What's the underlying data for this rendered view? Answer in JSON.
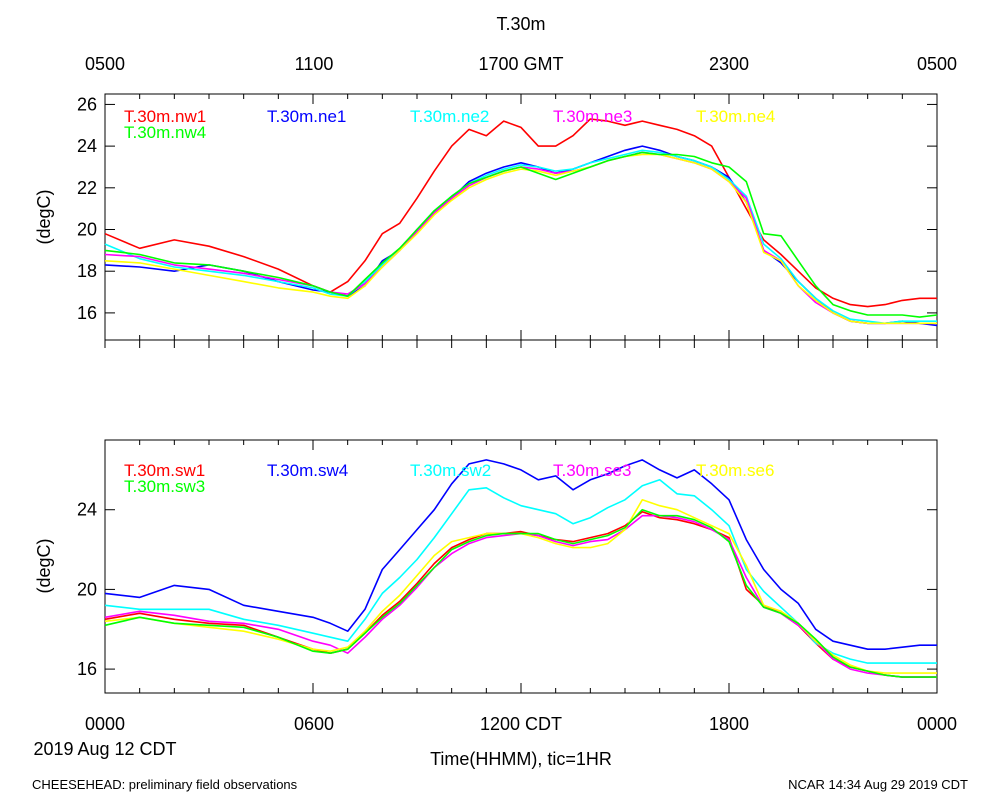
{
  "title": "T.30m",
  "footer_left": "CHEESEHEAD: preliminary field observations",
  "footer_right": "NCAR 14:34 Aug 29 2019 CDT",
  "date_label": "2019 Aug 12 CDT",
  "xlabel": "Time(HHMM), tic=1HR",
  "top_axis_ticks": [
    "0500",
    "1100",
    "1700 GMT",
    "2300",
    "0500"
  ],
  "bottom_axis_ticks": [
    "0000",
    "0600",
    "1200 CDT",
    "1800",
    "0000"
  ],
  "colors": {
    "red": "#ff0000",
    "blue": "#0000ff",
    "cyan": "#00ffff",
    "magenta": "#ff00ff",
    "yellow": "#ffff00",
    "green": "#00ff00"
  },
  "chart_data": [
    {
      "type": "line",
      "panel": "top",
      "ylabel": "(degC)",
      "xlim": [
        0,
        24
      ],
      "ylim": [
        14.7,
        26.5
      ],
      "yticks": [
        16,
        18,
        20,
        22,
        24,
        26
      ],
      "x": [
        0,
        1,
        2,
        3,
        4,
        5,
        6,
        6.5,
        7,
        7.5,
        8,
        8.5,
        9,
        9.5,
        10,
        10.5,
        11,
        11.5,
        12,
        12.5,
        13,
        13.5,
        14,
        14.5,
        15,
        15.5,
        16,
        16.5,
        17,
        17.5,
        18,
        18.5,
        19,
        19.5,
        20,
        20.5,
        21,
        21.5,
        22,
        22.5,
        23,
        23.5,
        24
      ],
      "series": [
        {
          "name": "T.30m.nw1",
          "color": "red",
          "values": [
            19.8,
            19.1,
            19.5,
            19.2,
            18.7,
            18.1,
            17.3,
            17.0,
            17.5,
            18.5,
            19.8,
            20.3,
            21.5,
            22.8,
            24.0,
            24.8,
            24.5,
            25.2,
            24.9,
            24.0,
            24.0,
            24.5,
            25.3,
            25.2,
            25.0,
            25.2,
            25.0,
            24.8,
            24.5,
            24.0,
            22.5,
            21.0,
            19.5,
            18.8,
            18.0,
            17.2,
            16.7,
            16.4,
            16.3,
            16.4,
            16.6,
            16.7,
            16.7
          ]
        },
        {
          "name": "T.30m.ne1",
          "color": "blue",
          "values": [
            18.3,
            18.2,
            18.0,
            18.3,
            18.0,
            17.5,
            17.1,
            17.0,
            16.8,
            17.3,
            18.5,
            19.0,
            20.0,
            20.8,
            21.5,
            22.3,
            22.7,
            23.0,
            23.2,
            23.0,
            22.7,
            22.9,
            23.2,
            23.5,
            23.8,
            24.0,
            23.8,
            23.5,
            23.3,
            23.0,
            22.5,
            21.3,
            19.0,
            18.4,
            17.5,
            16.7,
            16.0,
            15.6,
            15.5,
            15.5,
            15.6,
            15.5,
            15.4
          ]
        },
        {
          "name": "T.30m.ne2",
          "color": "cyan",
          "values": [
            19.3,
            18.6,
            18.2,
            18.0,
            17.8,
            17.5,
            17.2,
            16.9,
            16.8,
            17.5,
            18.3,
            19.0,
            20.0,
            20.9,
            21.6,
            22.2,
            22.6,
            22.9,
            23.1,
            23.0,
            22.8,
            22.9,
            23.2,
            23.4,
            23.6,
            23.8,
            23.7,
            23.5,
            23.3,
            23.0,
            22.4,
            21.6,
            19.3,
            18.6,
            17.5,
            16.7,
            16.1,
            15.7,
            15.6,
            15.5,
            15.6,
            15.6,
            15.6
          ]
        },
        {
          "name": "T.30m.ne3",
          "color": "magenta",
          "values": [
            18.8,
            18.7,
            18.3,
            18.1,
            17.9,
            17.6,
            17.3,
            17.0,
            16.9,
            17.4,
            18.2,
            19.0,
            19.9,
            20.8,
            21.5,
            22.1,
            22.5,
            22.8,
            23.0,
            22.9,
            22.7,
            22.8,
            23.0,
            23.3,
            23.5,
            23.7,
            23.6,
            23.4,
            23.2,
            22.9,
            22.3,
            21.5,
            19.0,
            18.5,
            17.3,
            16.5,
            16.0,
            15.6,
            15.5,
            15.5,
            15.5,
            15.5,
            15.5
          ]
        },
        {
          "name": "T.30m.ne4",
          "color": "yellow",
          "values": [
            18.5,
            18.4,
            18.1,
            17.8,
            17.5,
            17.2,
            17.0,
            16.8,
            16.7,
            17.3,
            18.2,
            19.0,
            19.8,
            20.7,
            21.4,
            22.0,
            22.4,
            22.7,
            22.9,
            22.8,
            22.6,
            22.8,
            23.0,
            23.3,
            23.5,
            23.6,
            23.6,
            23.4,
            23.2,
            22.9,
            22.3,
            21.3,
            18.9,
            18.5,
            17.3,
            16.6,
            16.0,
            15.6,
            15.5,
            15.5,
            15.5,
            15.5,
            15.5
          ]
        },
        {
          "name": "T.30m.nw4",
          "color": "green",
          "values": [
            19.0,
            18.8,
            18.4,
            18.3,
            18.0,
            17.7,
            17.3,
            17.0,
            16.8,
            17.6,
            18.4,
            19.1,
            20.0,
            20.9,
            21.6,
            22.2,
            22.5,
            22.8,
            23.0,
            22.7,
            22.4,
            22.7,
            23.0,
            23.3,
            23.5,
            23.7,
            23.6,
            23.6,
            23.5,
            23.2,
            23.0,
            22.3,
            19.8,
            19.7,
            18.5,
            17.3,
            16.4,
            16.1,
            15.9,
            15.9,
            15.9,
            15.8,
            15.9
          ]
        }
      ]
    },
    {
      "type": "line",
      "panel": "bottom",
      "ylabel": "(degC)",
      "xlim": [
        0,
        24
      ],
      "ylim": [
        14.8,
        27.5
      ],
      "yticks": [
        16,
        20,
        24
      ],
      "x": [
        0,
        1,
        2,
        3,
        4,
        5,
        6,
        6.5,
        7,
        7.5,
        8,
        8.5,
        9,
        9.5,
        10,
        10.5,
        11,
        11.5,
        12,
        12.5,
        13,
        13.5,
        14,
        14.5,
        15,
        15.5,
        16,
        16.5,
        17,
        17.5,
        18,
        18.5,
        19,
        19.5,
        20,
        20.5,
        21,
        21.5,
        22,
        22.5,
        23,
        23.5,
        24
      ],
      "series": [
        {
          "name": "T.30m.sw1",
          "color": "red",
          "values": [
            18.5,
            18.8,
            18.5,
            18.3,
            18.2,
            17.6,
            17.0,
            16.8,
            17.0,
            17.8,
            18.7,
            19.4,
            20.3,
            21.3,
            22.1,
            22.5,
            22.8,
            22.8,
            22.9,
            22.7,
            22.5,
            22.4,
            22.6,
            22.8,
            23.2,
            23.9,
            23.6,
            23.5,
            23.3,
            23.0,
            22.6,
            20.0,
            19.2,
            18.8,
            18.2,
            17.3,
            16.5,
            16.1,
            15.9,
            15.7,
            15.6,
            15.6,
            15.6
          ]
        },
        {
          "name": "T.30m.sw4",
          "color": "blue",
          "values": [
            19.8,
            19.6,
            20.2,
            20.0,
            19.2,
            18.9,
            18.6,
            18.3,
            17.9,
            19.0,
            21.0,
            22.0,
            23.0,
            24.0,
            25.3,
            26.3,
            26.5,
            26.3,
            26.0,
            25.5,
            25.7,
            25.0,
            25.5,
            25.8,
            26.2,
            26.5,
            26.0,
            25.6,
            26.0,
            25.3,
            24.5,
            22.5,
            21.0,
            20.0,
            19.3,
            18.0,
            17.4,
            17.2,
            17.0,
            17.0,
            17.1,
            17.2,
            17.2
          ]
        },
        {
          "name": "T.30m.sw2",
          "color": "cyan",
          "values": [
            19.2,
            19.0,
            19.0,
            19.0,
            18.5,
            18.2,
            17.8,
            17.6,
            17.4,
            18.5,
            19.8,
            20.6,
            21.5,
            22.6,
            23.8,
            25.0,
            25.1,
            24.6,
            24.2,
            24.0,
            23.8,
            23.3,
            23.6,
            24.1,
            24.5,
            25.2,
            25.5,
            24.8,
            24.7,
            24.0,
            23.2,
            21.0,
            19.9,
            19.1,
            18.3,
            17.3,
            16.8,
            16.5,
            16.3,
            16.3,
            16.3,
            16.3,
            16.3
          ]
        },
        {
          "name": "T.30m.se3",
          "color": "magenta",
          "values": [
            18.6,
            18.9,
            18.7,
            18.4,
            18.3,
            18.0,
            17.4,
            17.2,
            16.8,
            17.6,
            18.5,
            19.2,
            20.1,
            21.1,
            21.8,
            22.3,
            22.6,
            22.7,
            22.8,
            22.7,
            22.4,
            22.2,
            22.4,
            22.5,
            23.0,
            23.7,
            23.7,
            23.6,
            23.4,
            23.0,
            22.5,
            20.6,
            19.1,
            18.8,
            18.2,
            17.4,
            16.5,
            16.0,
            15.8,
            15.7,
            15.6,
            15.6,
            15.6
          ]
        },
        {
          "name": "T.30m.se6",
          "color": "yellow",
          "values": [
            18.4,
            18.6,
            18.3,
            18.1,
            17.9,
            17.5,
            17.0,
            16.9,
            17.1,
            17.9,
            18.9,
            19.7,
            20.7,
            21.7,
            22.4,
            22.6,
            22.8,
            22.8,
            22.8,
            22.6,
            22.3,
            22.1,
            22.1,
            22.3,
            23.0,
            24.5,
            24.2,
            24.0,
            23.6,
            23.2,
            22.8,
            21.2,
            19.2,
            18.9,
            18.3,
            17.4,
            16.7,
            16.2,
            15.9,
            15.8,
            15.8,
            15.8,
            15.8
          ]
        },
        {
          "name": "T.30m.sw3",
          "color": "green",
          "values": [
            18.2,
            18.6,
            18.3,
            18.2,
            18.1,
            17.6,
            16.9,
            16.8,
            17.0,
            17.8,
            18.6,
            19.3,
            20.2,
            21.1,
            22.0,
            22.4,
            22.7,
            22.8,
            22.8,
            22.8,
            22.5,
            22.3,
            22.5,
            22.7,
            23.1,
            24.0,
            23.7,
            23.7,
            23.5,
            23.1,
            22.4,
            20.2,
            19.1,
            18.8,
            18.3,
            17.5,
            16.6,
            16.1,
            15.9,
            15.7,
            15.6,
            15.6,
            15.6
          ]
        }
      ]
    }
  ]
}
